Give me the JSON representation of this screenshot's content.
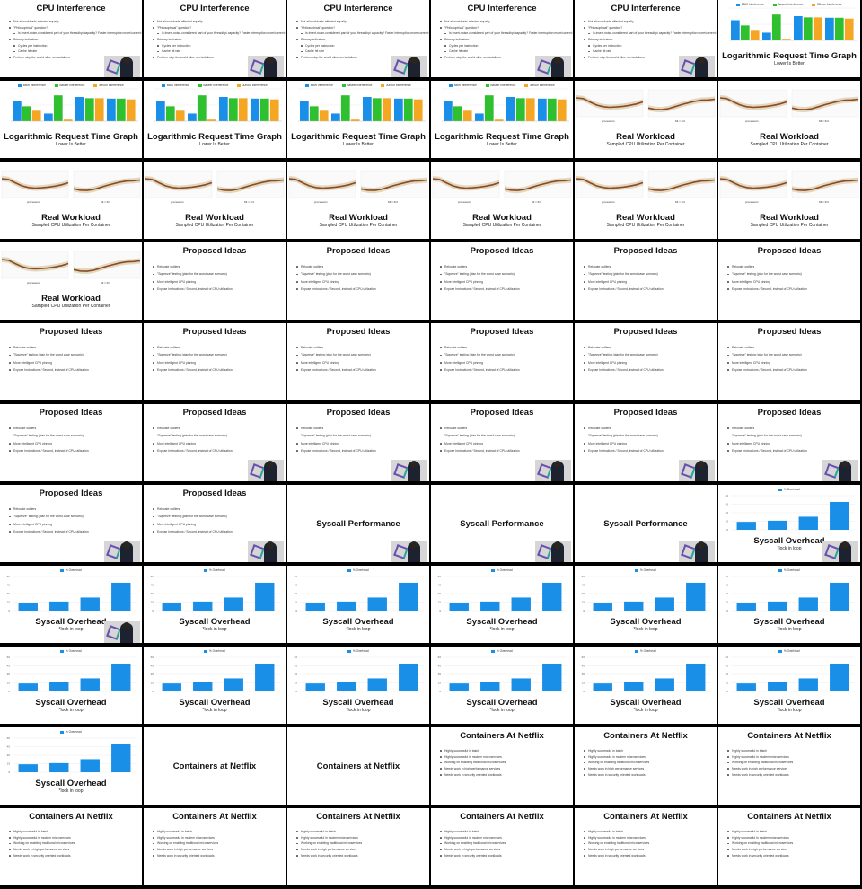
{
  "slide_templates": {
    "cpu": {
      "title": "CPU Interference",
      "bullets": [
        {
          "text": "Not all workloads affected equally",
          "level": 1
        },
        {
          "text": "\"Philosophical\" question?",
          "level": 1
        },
        {
          "text": "Is insert-noise-considered part of your thread/cpi capacity? Faster interruption more/current note runtime?",
          "level": 2
        },
        {
          "text": "Primary indicators:",
          "level": 1
        },
        {
          "text": "Cycles per instruction",
          "level": 2
        },
        {
          "text": "Cache hit rate",
          "level": 2
        },
        {
          "text": "Perform step the world slice run isolations",
          "level": 1
        }
      ]
    },
    "log": {
      "title": "Logarithmic Request Time Graph",
      "subtitle": "Lower Is Better",
      "chart_data": {
        "type": "bar",
        "categories": [
          "",
          "",
          "",
          ""
        ],
        "series": [
          {
            "name": "BBW Interference",
            "values": [
              5.0,
              1.9,
              6.0,
              5.6
            ],
            "color": "#1a8fe8"
          },
          {
            "name": "Baseer Interference",
            "values": [
              3.7,
              6.4,
              5.7,
              5.6
            ],
            "color": "#2fc02f"
          },
          {
            "name": "30hour Interference",
            "values": [
              2.6,
              0.4,
              5.7,
              5.4
            ],
            "color": "#f5a623"
          }
        ],
        "ylim": [
          0,
          8
        ]
      }
    },
    "real": {
      "title": "Real Workload",
      "subtitle": "Sampled CPU Utilization Per Container",
      "chart_data": {
        "type": "area",
        "x": [
          0,
          1,
          2,
          3,
          4,
          5,
          6,
          7,
          8,
          9,
          10
        ],
        "series": [
          {
            "values": [
              5.6,
              5.4,
              4.4,
              3.5,
              3.0,
              2.8,
              2.9,
              3.1,
              3.4,
              3.8,
              4.4
            ]
          },
          {
            "values": [
              2.6,
              2.2,
              2.1,
              2.4,
              3.0,
              3.6,
              4.1,
              4.6,
              4.9,
              5.0,
              5.2
            ]
          }
        ],
        "ylim": [
          0,
          8
        ]
      },
      "left_axis_label": "processors",
      "right_axis_label": "Mt ≈ 6/4"
    },
    "proposed": {
      "title": "Proposed Ideas",
      "bullets": [
        {
          "text": "Relocate outliers",
          "level": 1
        },
        {
          "text": "\"Squeeze\" testing (plan for the worst case scenario)",
          "level": 1
        },
        {
          "text": "More intelligent CPU pinning",
          "level": 1
        },
        {
          "text": "Expose Instructions / Second, instead of CPU utilization",
          "level": 1
        }
      ]
    },
    "syscallperf": {
      "title": "Syscall Performance"
    },
    "overhead": {
      "title": "Syscall Overhead",
      "subtitle": "*lock in loop",
      "chart_data": {
        "type": "bar",
        "categories": [
          "",
          "",
          "",
          ""
        ],
        "series": [
          {
            "name": "% Overhead",
            "values": [
              14,
              16,
              23,
              49
            ],
            "color": "#1a8fe8"
          }
        ],
        "ylim": [
          0,
          60
        ],
        "yticks": [
          0,
          15,
          30,
          45,
          60
        ]
      }
    },
    "netflix1": {
      "title": "Containers at Netflix"
    },
    "netflix2": {
      "title": "Containers At Netflix",
      "bullets": [
        {
          "text": "Highly successful in batch",
          "level": 1
        },
        {
          "text": "Highly successful in modern microservices",
          "level": 1
        },
        {
          "text": "Working on enabling traditional microservices",
          "level": 1
        },
        {
          "text": "Needs work in high performance services",
          "level": 1
        },
        {
          "text": "Needs work in security oriented workloads",
          "level": 1
        }
      ]
    }
  },
  "rows": [
    [
      {
        "t": "cpu",
        "cam": true
      },
      {
        "t": "cpu",
        "cam": true
      },
      {
        "t": "cpu",
        "cam": true
      },
      {
        "t": "cpu",
        "cam": true
      },
      {
        "t": "cpu",
        "cam": true
      },
      {
        "t": "log",
        "cam": true
      }
    ],
    [
      {
        "t": "log"
      },
      {
        "t": "log"
      },
      {
        "t": "log"
      },
      {
        "t": "log"
      },
      {
        "t": "real"
      },
      {
        "t": "real"
      }
    ],
    [
      {
        "t": "real"
      },
      {
        "t": "real"
      },
      {
        "t": "real"
      },
      {
        "t": "real"
      },
      {
        "t": "real"
      },
      {
        "t": "real"
      }
    ],
    [
      {
        "t": "real"
      },
      {
        "t": "proposed"
      },
      {
        "t": "proposed"
      },
      {
        "t": "proposed"
      },
      {
        "t": "proposed"
      },
      {
        "t": "proposed"
      }
    ],
    [
      {
        "t": "proposed"
      },
      {
        "t": "proposed"
      },
      {
        "t": "proposed"
      },
      {
        "t": "proposed"
      },
      {
        "t": "proposed"
      },
      {
        "t": "proposed"
      }
    ],
    [
      {
        "t": "proposed"
      },
      {
        "t": "proposed",
        "cam": true
      },
      {
        "t": "proposed",
        "cam": true
      },
      {
        "t": "proposed",
        "cam": true
      },
      {
        "t": "proposed",
        "cam": true
      },
      {
        "t": "proposed",
        "cam": true
      }
    ],
    [
      {
        "t": "proposed",
        "cam": true
      },
      {
        "t": "proposed",
        "cam": true
      },
      {
        "t": "syscallperf",
        "cam": true
      },
      {
        "t": "syscallperf",
        "cam": true
      },
      {
        "t": "syscallperf",
        "cam": true
      },
      {
        "t": "overhead",
        "cam": true
      }
    ],
    [
      {
        "t": "overhead",
        "cam": true
      },
      {
        "t": "overhead"
      },
      {
        "t": "overhead"
      },
      {
        "t": "overhead"
      },
      {
        "t": "overhead"
      },
      {
        "t": "overhead"
      }
    ],
    [
      {
        "t": "overhead"
      },
      {
        "t": "overhead"
      },
      {
        "t": "overhead"
      },
      {
        "t": "overhead"
      },
      {
        "t": "overhead"
      },
      {
        "t": "overhead"
      }
    ],
    [
      {
        "t": "overhead"
      },
      {
        "t": "netflix1"
      },
      {
        "t": "netflix1"
      },
      {
        "t": "netflix2"
      },
      {
        "t": "netflix2"
      },
      {
        "t": "netflix2"
      }
    ],
    [
      {
        "t": "netflix2"
      },
      {
        "t": "netflix2"
      },
      {
        "t": "netflix2"
      },
      {
        "t": "netflix2"
      },
      {
        "t": "netflix2"
      },
      {
        "t": "netflix2"
      }
    ]
  ]
}
